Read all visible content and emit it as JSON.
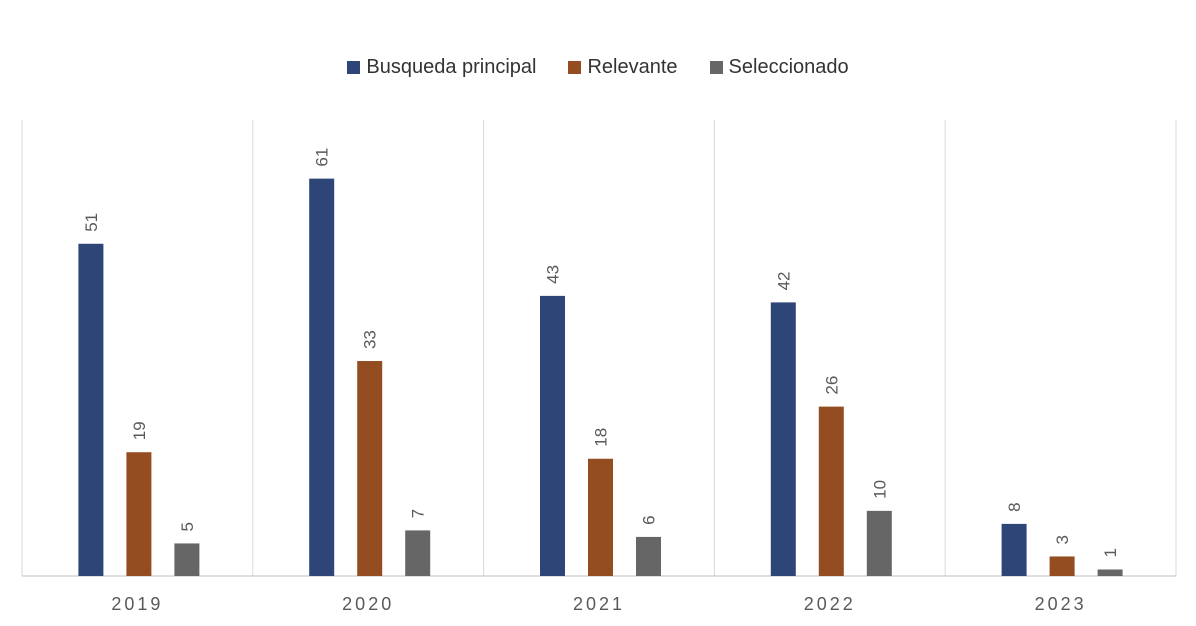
{
  "chart_data": {
    "type": "bar",
    "categories": [
      "2019",
      "2020",
      "2021",
      "2022",
      "2023"
    ],
    "series": [
      {
        "name": "Busqueda principal",
        "color": "#2e4677",
        "values": [
          51,
          61,
          43,
          42,
          8
        ]
      },
      {
        "name": "Relevante",
        "color": "#944c21",
        "values": [
          19,
          33,
          18,
          26,
          3
        ]
      },
      {
        "name": "Seleccionado",
        "color": "#666666",
        "values": [
          5,
          7,
          6,
          10,
          1
        ]
      }
    ],
    "ylim": [
      0,
      70
    ],
    "legend_position": "top",
    "data_labels": true,
    "data_label_rotation": "vertical",
    "grid": "vertical category separators",
    "title": "",
    "xlabel": "",
    "ylabel": ""
  }
}
